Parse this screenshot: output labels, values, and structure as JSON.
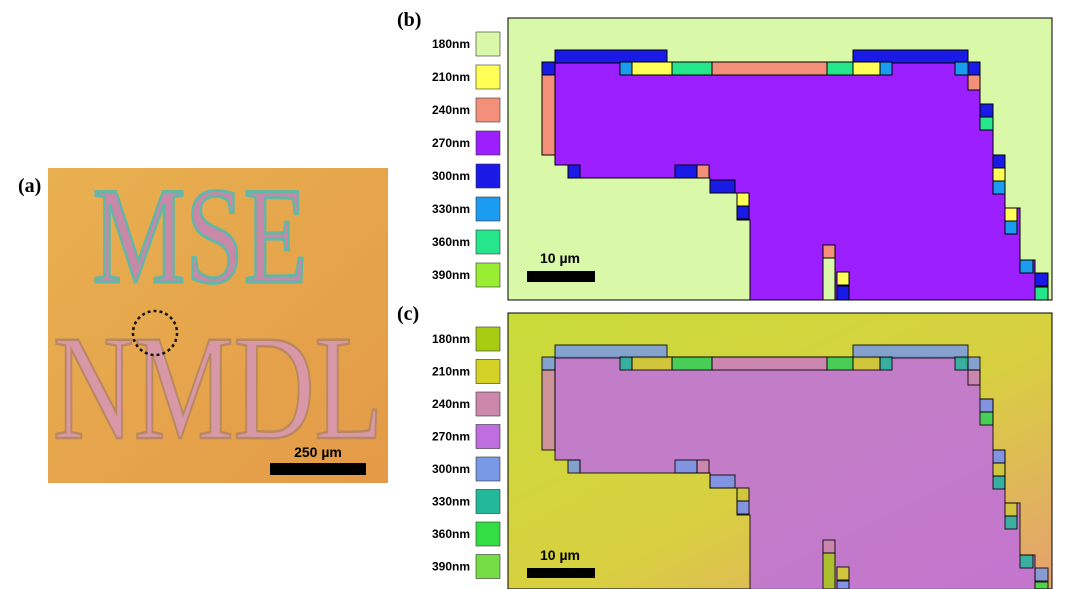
{
  "panels": [
    {
      "label": "(a)",
      "image_text": [
        "MSE",
        "NMDL"
      ],
      "scale_bar": "250 µm"
    },
    {
      "label": "(b)",
      "scale_bar": "10 µm",
      "legend": [
        {
          "label": "180nm",
          "color": "#d9f8a8"
        },
        {
          "label": "210nm",
          "color": "#ffff55"
        },
        {
          "label": "240nm",
          "color": "#f4907a"
        },
        {
          "label": "270nm",
          "color": "#9b1fff"
        },
        {
          "label": "300nm",
          "color": "#1a1ae6"
        },
        {
          "label": "330nm",
          "color": "#1a9cf0"
        },
        {
          "label": "360nm",
          "color": "#26e68c"
        },
        {
          "label": "390nm",
          "color": "#99ee33"
        }
      ]
    },
    {
      "label": "(c)",
      "scale_bar": "10 µm",
      "legend": [
        {
          "label": "180nm",
          "color": "#a8cc12"
        },
        {
          "label": "210nm",
          "color": "#d4d226"
        },
        {
          "label": "240nm",
          "color": "#cc88aa"
        },
        {
          "label": "270nm",
          "color": "#bf6ee0"
        },
        {
          "label": "300nm",
          "color": "#7799e6"
        },
        {
          "label": "330nm",
          "color": "#22b899"
        },
        {
          "label": "360nm",
          "color": "#33dd44"
        },
        {
          "label": "390nm",
          "color": "#77dd44"
        }
      ]
    }
  ]
}
